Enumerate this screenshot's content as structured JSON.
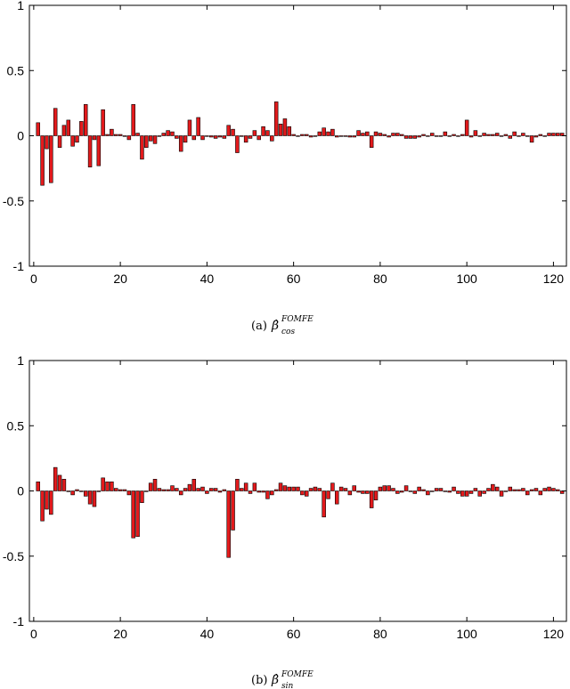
{
  "chart_data": [
    {
      "type": "bar",
      "panel_label": "(a)",
      "caption_symbol": "β̂",
      "caption_superscript": "FOMFE",
      "caption_subscript": "cos",
      "xlim": [
        -1,
        123
      ],
      "ylim": [
        -1,
        1
      ],
      "xticks": [
        0,
        20,
        40,
        60,
        80,
        100,
        120
      ],
      "yticks": [
        1,
        0.5,
        0,
        -0.5,
        -1
      ],
      "ytick_labels": [
        "1",
        "0.5",
        "0",
        "-0.5",
        "-1"
      ],
      "x": [
        1,
        2,
        3,
        4,
        5,
        6,
        7,
        8,
        9,
        10,
        11,
        12,
        13,
        14,
        15,
        16,
        17,
        18,
        19,
        20,
        21,
        22,
        23,
        24,
        25,
        26,
        27,
        28,
        29,
        30,
        31,
        32,
        33,
        34,
        35,
        36,
        37,
        38,
        39,
        40,
        41,
        42,
        43,
        44,
        45,
        46,
        47,
        48,
        49,
        50,
        51,
        52,
        53,
        54,
        55,
        56,
        57,
        58,
        59,
        60,
        61,
        62,
        63,
        64,
        65,
        66,
        67,
        68,
        69,
        70,
        71,
        72,
        73,
        74,
        75,
        76,
        77,
        78,
        79,
        80,
        81,
        82,
        83,
        84,
        85,
        86,
        87,
        88,
        89,
        90,
        91,
        92,
        93,
        94,
        95,
        96,
        97,
        98,
        99,
        100,
        101,
        102,
        103,
        104,
        105,
        106,
        107,
        108,
        109,
        110,
        111,
        112,
        113,
        114,
        115,
        116,
        117,
        118,
        119,
        120,
        121,
        122
      ],
      "values": [
        0.1,
        -0.38,
        -0.1,
        -0.36,
        0.21,
        -0.09,
        0.08,
        0.12,
        -0.08,
        -0.05,
        0.11,
        0.24,
        -0.24,
        -0.03,
        -0.23,
        0.2,
        0.01,
        0.05,
        0.01,
        0.01,
        0.0,
        -0.03,
        0.24,
        0.02,
        -0.18,
        -0.09,
        -0.04,
        -0.06,
        0.0,
        0.02,
        0.04,
        0.03,
        -0.02,
        -0.12,
        -0.05,
        0.12,
        -0.03,
        0.14,
        -0.03,
        0.0,
        -0.01,
        -0.02,
        -0.01,
        -0.02,
        0.08,
        0.05,
        -0.13,
        0.0,
        -0.05,
        -0.02,
        0.04,
        -0.03,
        0.07,
        0.04,
        -0.04,
        0.26,
        0.09,
        0.13,
        0.07,
        0.01,
        0.0,
        0.01,
        0.01,
        -0.01,
        0.0,
        0.03,
        0.06,
        0.03,
        0.05,
        -0.01,
        0.0,
        0.0,
        -0.01,
        -0.01,
        0.04,
        0.02,
        0.03,
        -0.09,
        0.03,
        0.02,
        0.01,
        -0.01,
        0.02,
        0.02,
        0.01,
        -0.02,
        -0.02,
        -0.02,
        -0.01,
        0.01,
        0.0,
        0.02,
        0.0,
        0.0,
        0.03,
        0.0,
        0.01,
        0.0,
        0.01,
        0.12,
        -0.01,
        0.04,
        0.0,
        0.02,
        0.01,
        0.01,
        0.02,
        0.0,
        0.01,
        -0.02,
        0.03,
        0.0,
        0.02,
        0.0,
        -0.05,
        -0.01,
        0.01,
        0.0,
        0.02,
        0.02,
        0.02,
        0.02
      ]
    },
    {
      "type": "bar",
      "panel_label": "(b)",
      "caption_symbol": "β̂",
      "caption_superscript": "FOMFE",
      "caption_subscript": "sin",
      "xlim": [
        -1,
        123
      ],
      "ylim": [
        -1,
        1
      ],
      "xticks": [
        0,
        20,
        40,
        60,
        80,
        100,
        120
      ],
      "yticks": [
        1,
        0.5,
        0,
        -0.5,
        -1
      ],
      "ytick_labels": [
        "1",
        "0.5",
        "0",
        "-0.5",
        "-1"
      ],
      "x": [
        1,
        2,
        3,
        4,
        5,
        6,
        7,
        8,
        9,
        10,
        11,
        12,
        13,
        14,
        15,
        16,
        17,
        18,
        19,
        20,
        21,
        22,
        23,
        24,
        25,
        26,
        27,
        28,
        29,
        30,
        31,
        32,
        33,
        34,
        35,
        36,
        37,
        38,
        39,
        40,
        41,
        42,
        43,
        44,
        45,
        46,
        47,
        48,
        49,
        50,
        51,
        52,
        53,
        54,
        55,
        56,
        57,
        58,
        59,
        60,
        61,
        62,
        63,
        64,
        65,
        66,
        67,
        68,
        69,
        70,
        71,
        72,
        73,
        74,
        75,
        76,
        77,
        78,
        79,
        80,
        81,
        82,
        83,
        84,
        85,
        86,
        87,
        88,
        89,
        90,
        91,
        92,
        93,
        94,
        95,
        96,
        97,
        98,
        99,
        100,
        101,
        102,
        103,
        104,
        105,
        106,
        107,
        108,
        109,
        110,
        111,
        112,
        113,
        114,
        115,
        116,
        117,
        118,
        119,
        120,
        121,
        122
      ],
      "values": [
        0.07,
        -0.23,
        -0.14,
        -0.18,
        0.18,
        0.12,
        0.09,
        0.0,
        -0.03,
        0.01,
        0.0,
        -0.04,
        -0.1,
        -0.12,
        0.0,
        0.1,
        0.07,
        0.07,
        0.02,
        0.01,
        0.01,
        -0.03,
        -0.36,
        -0.35,
        -0.09,
        0.0,
        0.06,
        0.09,
        0.02,
        0.01,
        0.01,
        0.04,
        0.02,
        -0.03,
        0.02,
        0.05,
        0.09,
        0.02,
        0.03,
        -0.02,
        0.02,
        0.02,
        -0.01,
        0.01,
        -0.51,
        -0.3,
        0.09,
        0.02,
        0.06,
        -0.02,
        0.06,
        -0.01,
        -0.01,
        -0.06,
        -0.03,
        0.01,
        0.06,
        0.04,
        0.03,
        0.03,
        0.03,
        -0.03,
        -0.04,
        0.02,
        0.03,
        0.02,
        -0.2,
        -0.06,
        0.06,
        -0.1,
        0.03,
        0.02,
        -0.03,
        0.04,
        -0.01,
        -0.02,
        -0.02,
        -0.13,
        -0.07,
        0.03,
        0.04,
        0.04,
        0.02,
        -0.02,
        -0.01,
        0.04,
        0.0,
        -0.02,
        0.03,
        0.01,
        -0.03,
        0.0,
        0.02,
        0.02,
        0.0,
        -0.01,
        0.03,
        -0.02,
        -0.04,
        -0.04,
        -0.02,
        0.02,
        -0.04,
        -0.02,
        0.02,
        0.05,
        0.03,
        -0.04,
        0.0,
        0.03,
        0.01,
        0.01,
        0.02,
        -0.03,
        0.01,
        0.02,
        -0.03,
        0.02,
        0.03,
        0.02,
        0.01,
        -0.02
      ]
    }
  ]
}
